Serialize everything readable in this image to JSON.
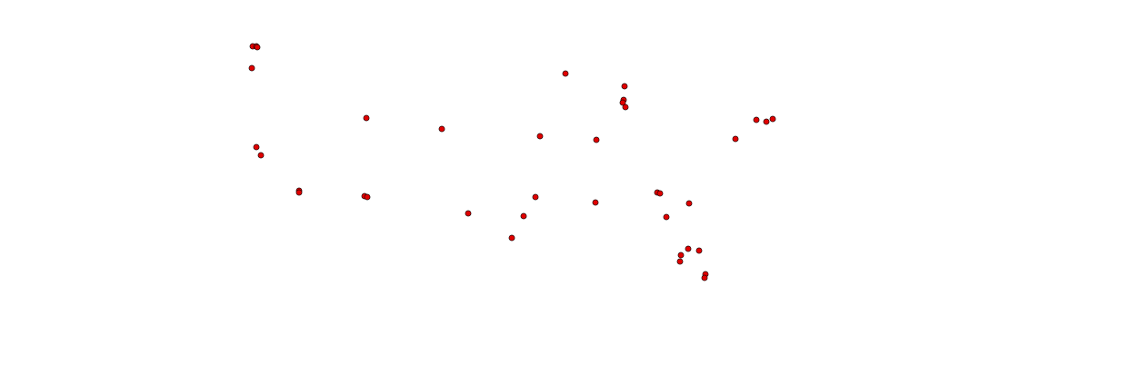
{
  "map": {
    "background_color": "#ffffff",
    "marker_fill": "#e00000",
    "marker_stroke": "#000000",
    "marker_shape": "circle",
    "marker_count": 41
  }
}
